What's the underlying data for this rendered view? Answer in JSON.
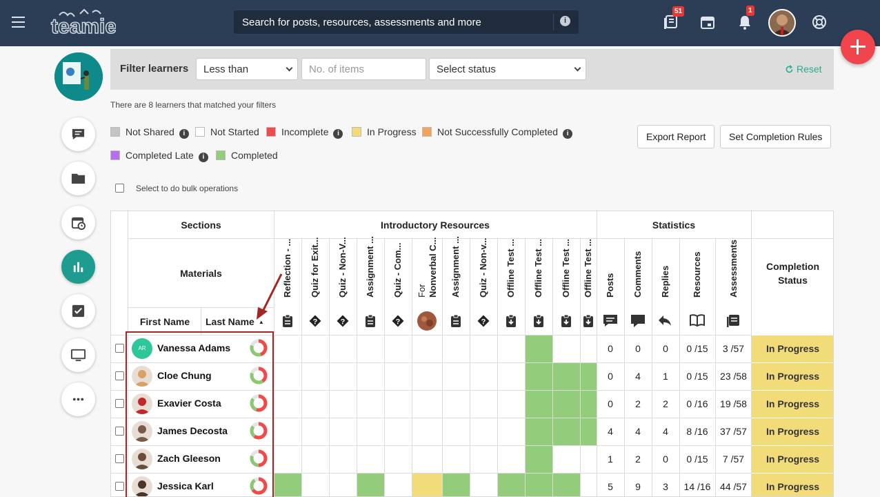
{
  "header": {
    "search_placeholder": "Search for posts, resources, assessments and more",
    "resources_badge": "51",
    "notifications_badge": "1",
    "brand_color": "#2c3e55"
  },
  "filters": {
    "label": "Filter learners",
    "comparison": "Less than",
    "items_placeholder": "No. of items",
    "status_placeholder": "Select status",
    "reset_label": "Reset"
  },
  "match_note": "There are 8 learners that matched your filters",
  "legend": [
    {
      "label": "Not Shared",
      "color": "#c4c4c4",
      "info": true
    },
    {
      "label": "Not Started",
      "color": "#ffffff",
      "info": false
    },
    {
      "label": "Incomplete",
      "color": "#f04a4a",
      "info": true
    },
    {
      "label": "In Progress",
      "color": "#f2dc7a",
      "info": false
    },
    {
      "label": "Not Successfully Completed",
      "color": "#f4a35a",
      "info": true
    },
    {
      "label": "Completed Late",
      "color": "#b56ef2",
      "info": true
    },
    {
      "label": "Completed",
      "color": "#93cc7a",
      "info": false
    }
  ],
  "buttons": {
    "export": "Export Report",
    "rules": "Set Completion Rules"
  },
  "bulk_label": "Select to do bulk operations",
  "table": {
    "sections_header": "Sections",
    "materials_header": "Materials",
    "intro_header": "Introductory Resources",
    "stats_header": "Statistics",
    "completion_header": "Completion Status",
    "first_name_header": "First Name",
    "last_name_header": "Last Name",
    "materials": [
      {
        "title": "Reflection - ...",
        "icon": "assignment-icon"
      },
      {
        "title": "Quiz for Exit...",
        "icon": "quiz-icon"
      },
      {
        "title": "Quiz - Non-V...",
        "icon": "quiz-icon"
      },
      {
        "title": "Assignment ...",
        "icon": "assignment-icon"
      },
      {
        "title": "Quiz - Com...",
        "icon": "quiz-icon"
      },
      {
        "title": "For",
        "title2": "Nonverbal C...",
        "icon": "image-thumbnail"
      },
      {
        "title": "Assignment ...",
        "icon": "assignment-icon"
      },
      {
        "title": "Quiz - Non-v...",
        "icon": "quiz-icon"
      },
      {
        "title": "Offline Test ...",
        "icon": "offline-test-icon"
      },
      {
        "title": "Offline Test ...",
        "icon": "offline-test-icon"
      },
      {
        "title": "Offline Test ...",
        "icon": "offline-test-icon"
      },
      {
        "title": "Offline Test ...",
        "icon": "offline-test-icon"
      }
    ],
    "stat_columns": [
      {
        "title": "Posts",
        "icon": "posts-icon"
      },
      {
        "title": "Comments",
        "icon": "comments-icon"
      },
      {
        "title": "Replies",
        "icon": "reply-icon"
      },
      {
        "title": "Resources",
        "icon": "book-icon"
      },
      {
        "title": "Assessments",
        "icon": "assessments-icon"
      }
    ],
    "learners": [
      {
        "name": "Vanessa Adams",
        "initials": "AR",
        "cells": [
          0,
          0,
          0,
          0,
          0,
          0,
          0,
          0,
          0,
          1,
          0,
          0
        ],
        "posts": "0",
        "comments": "0",
        "replies": "0",
        "resources": "0 /15",
        "assessments": "3 /57",
        "status": "In Progress"
      },
      {
        "name": "Cloe Chung",
        "cells": [
          0,
          0,
          0,
          0,
          0,
          0,
          0,
          0,
          0,
          1,
          1,
          1
        ],
        "posts": "0",
        "comments": "4",
        "replies": "1",
        "resources": "0 /15",
        "assessments": "23 /58",
        "status": "In Progress"
      },
      {
        "name": "Exavier Costa",
        "cells": [
          0,
          0,
          0,
          0,
          0,
          0,
          0,
          0,
          0,
          1,
          1,
          1
        ],
        "posts": "0",
        "comments": "2",
        "replies": "2",
        "resources": "0 /16",
        "assessments": "19 /58",
        "status": "In Progress"
      },
      {
        "name": "James Decosta",
        "cells": [
          0,
          0,
          0,
          0,
          0,
          0,
          0,
          0,
          0,
          1,
          1,
          1
        ],
        "posts": "4",
        "comments": "4",
        "replies": "4",
        "resources": "8 /16",
        "assessments": "37 /57",
        "status": "In Progress"
      },
      {
        "name": "Zach Gleeson",
        "cells": [
          0,
          0,
          0,
          0,
          0,
          0,
          0,
          0,
          0,
          1,
          0,
          0
        ],
        "posts": "1",
        "comments": "2",
        "replies": "0",
        "resources": "0 /15",
        "assessments": "7 /57",
        "status": "In Progress"
      },
      {
        "name": "Jessica Karl",
        "cells": [
          1,
          0,
          0,
          1,
          0,
          2,
          1,
          0,
          1,
          1,
          1,
          0
        ],
        "posts": "5",
        "comments": "9",
        "replies": "3",
        "resources": "14 /16",
        "assessments": "44 /57",
        "status": "In Progress"
      }
    ]
  }
}
